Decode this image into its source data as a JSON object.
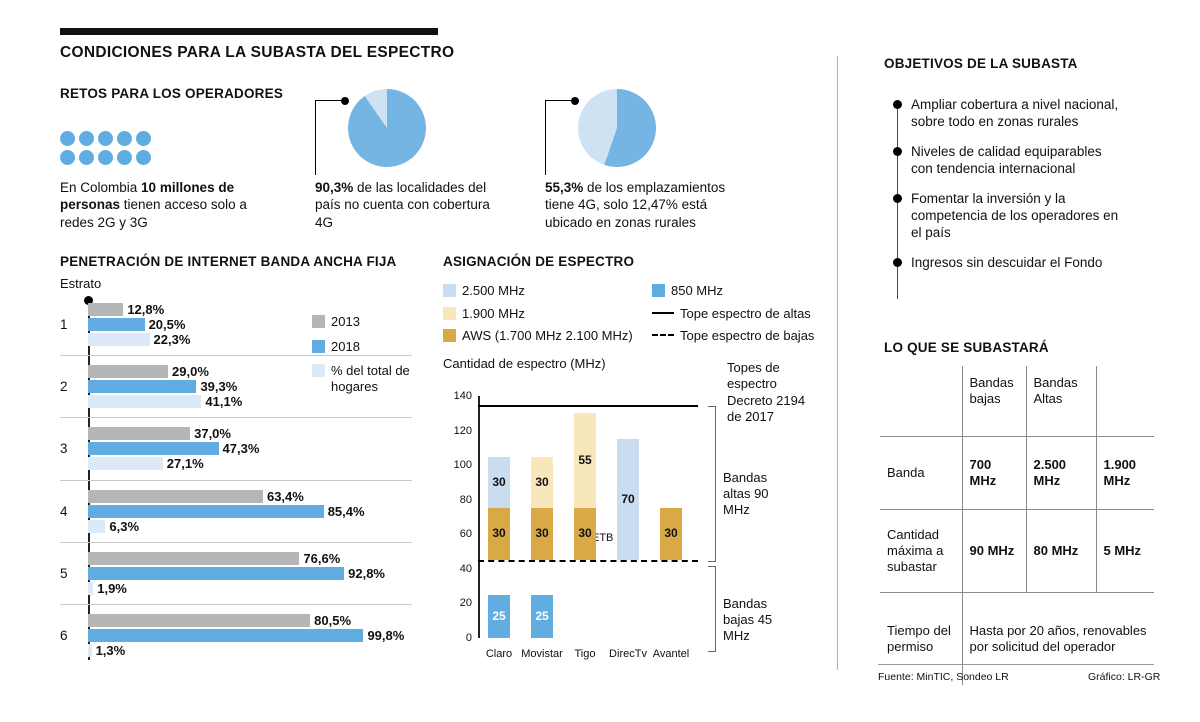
{
  "header": {
    "title": "CONDICIONES PARA LA SUBASTA DEL ESPECTRO"
  },
  "retos": {
    "title": "RETOS PARA LOS OPERADORES",
    "dots_count": 10,
    "text_pre": "En Colombia ",
    "text_bold": "10 millones de personas",
    "text_post": " tienen acceso solo a redes 2G y 3G",
    "pie1": {
      "pct": "90,3%",
      "desc": " de las localidades del país no cuenta con cobertura 4G"
    },
    "pie2": {
      "pct": "55,3%",
      "desc": " de los emplazamientos tiene 4G, solo 12,47% está ubicado en zonas rurales"
    }
  },
  "penetration": {
    "title": "PENETRACIÓN DE INTERNET BANDA ANCHA FIJA",
    "axis_label": "Estrato"
  },
  "spectrum": {
    "title": "ASIGNACIÓN DE ESPECTRO",
    "legend_left": [
      {
        "label": "2.500 MHz",
        "swatch": "square",
        "color": "#c9dcf0"
      },
      {
        "label": "1.900 MHz",
        "swatch": "square",
        "color": "#f7e7bb"
      },
      {
        "label": "AWS (1.700 MHz 2.100 MHz)",
        "swatch": "square",
        "color": "#d8a945"
      }
    ],
    "legend_right": [
      {
        "label": "850 MHz",
        "swatch": "square",
        "color": "#61ade1"
      },
      {
        "label": "Tope espectro de altas",
        "swatch": "solid-line"
      },
      {
        "label": "Tope espectro de bajas",
        "swatch": "dashed-line"
      }
    ],
    "y_axis_label": "Cantidad de espectro (MHz)",
    "annotations": {
      "topes": "Topes de espectro Decreto 2194 de 2017",
      "altas": "Bandas altas 90 MHz",
      "bajas": "Bandas bajas 45 MHz",
      "etb": "ETB"
    }
  },
  "objetivos": {
    "title": "OBJETIVOS DE LA SUBASTA",
    "items": [
      "Ampliar cobertura a nivel nacional, sobre todo en zonas rurales",
      "Niveles de calidad equiparables con tendencia internacional",
      "Fomentar la inversión y la competencia de los operadores en el país",
      "Ingresos sin descuidar el Fondo"
    ]
  },
  "subasta": {
    "title": "LO QUE SE SUBASTARÁ",
    "col_headers": [
      "",
      "Bandas bajas",
      "Bandas Altas",
      ""
    ],
    "rows": [
      {
        "label": "Banda",
        "cells": [
          "700 MHz",
          "2.500 MHz",
          "1.900 MHz"
        ]
      },
      {
        "label": "Cantidad máxima a subastar",
        "cells": [
          "90 MHz",
          "80 MHz",
          "5 MHz"
        ]
      },
      {
        "label": "Tiempo del permiso",
        "span": "Hasta por 20 años, renovables por solicitud del operador"
      }
    ]
  },
  "footer": {
    "source": "Fuente: MinTIC, Sondeo LR",
    "credit": "Gráfico: LR-GR"
  },
  "chart_data": [
    {
      "id": "pie_localidades",
      "type": "pie",
      "title": "90,3% de las localidades del país no cuenta con cobertura 4G",
      "labels": [
        "Sin cobertura 4G",
        "Con cobertura 4G"
      ],
      "values": [
        90.3,
        9.7
      ],
      "colors": [
        "#74b5e3",
        "#cfe2f3"
      ],
      "rotate_deg": -35
    },
    {
      "id": "pie_emplazamientos",
      "type": "pie",
      "title": "55,3% de los emplazamientos tiene 4G, solo 12,47% está ubicado en zonas rurales",
      "labels": [
        "Con 4G",
        "Resto"
      ],
      "values": [
        55.3,
        44.7
      ],
      "colors": [
        "#74b5e3",
        "#cfe2f3"
      ],
      "rotate_deg": 199
    },
    {
      "id": "penetracion_banda_ancha",
      "type": "bar",
      "orientation": "horizontal",
      "title": "PENETRACIÓN DE INTERNET BANDA ANCHA FIJA",
      "xlabel": "Estrato",
      "categories": [
        "1",
        "2",
        "3",
        "4",
        "5",
        "6"
      ],
      "xlim": [
        0,
        110
      ],
      "series": [
        {
          "name": "2013",
          "color": "#b5b6b8",
          "values": [
            12.8,
            29.0,
            37.0,
            63.4,
            76.6,
            80.5
          ],
          "labels": [
            "12,8%",
            "29,0%",
            "37,0%",
            "63,4%",
            "76,6%",
            "80,5%"
          ]
        },
        {
          "name": "2018",
          "color": "#61ade1",
          "values": [
            20.5,
            39.3,
            47.3,
            85.4,
            92.8,
            99.8
          ],
          "labels": [
            "20,5%",
            "39,3%",
            "47,3%",
            "85,4%",
            "92,8%",
            "99,8%"
          ]
        },
        {
          "name": "% del total de hogares",
          "color": "#dce9f6",
          "values": [
            22.3,
            41.1,
            27.1,
            6.3,
            1.9,
            1.3
          ],
          "labels": [
            "22,3%",
            "41,1%",
            "27,1%",
            "6,3%",
            "1,9%",
            "1,3%"
          ]
        }
      ]
    },
    {
      "id": "asignacion_espectro",
      "type": "bar",
      "stacked": true,
      "title": "ASIGNACIÓN DE ESPECTRO",
      "ylabel": "Cantidad de espectro (MHz)",
      "ylim": [
        0,
        140
      ],
      "y_ticks": [
        140,
        120,
        100,
        80,
        60,
        40,
        20,
        0
      ],
      "categories": [
        "Claro",
        "Movistar",
        "Tigo",
        "DirecTv",
        "Avantel"
      ],
      "high_base": 45,
      "bands": {
        "b2500": {
          "label": "2.500 MHz",
          "color": "#c9dcf0"
        },
        "b1900": {
          "label": "1.900 MHz",
          "color": "#f7e7bb"
        },
        "aws": {
          "label": "AWS (1.700 MHz 2.100 MHz)",
          "color": "#d8a945"
        },
        "b850": {
          "label": "850 MHz",
          "color": "#61ade1"
        }
      },
      "bars": [
        {
          "operator": "Claro",
          "low": [
            {
              "band": "b850",
              "value": 25
            }
          ],
          "high": [
            {
              "band": "aws",
              "value": 30
            },
            {
              "band": "b2500",
              "value": 30
            }
          ]
        },
        {
          "operator": "Movistar",
          "low": [
            {
              "band": "b850",
              "value": 25
            }
          ],
          "high": [
            {
              "band": "aws",
              "value": 30
            },
            {
              "band": "b1900",
              "value": 30
            }
          ]
        },
        {
          "operator": "Tigo",
          "low": [],
          "high": [
            {
              "band": "aws",
              "value": 30
            },
            {
              "band": "b1900",
              "value": 55
            }
          ]
        },
        {
          "operator": "DirecTv",
          "low": [],
          "high": [
            {
              "band": "b2500",
              "value": 70
            }
          ]
        },
        {
          "operator": "Avantel",
          "low": [],
          "high": [
            {
              "band": "aws",
              "value": 30
            }
          ]
        }
      ],
      "reference_lines": [
        {
          "label": "Tope espectro de altas",
          "value": 135,
          "style": "solid"
        },
        {
          "label": "Tope espectro de bajas",
          "value": 45,
          "style": "dashed"
        }
      ],
      "annotations": [
        "Topes de espectro Decreto 2194 de 2017",
        "Bandas altas 90 MHz",
        "Bandas bajas 45 MHz",
        "ETB"
      ]
    }
  ]
}
